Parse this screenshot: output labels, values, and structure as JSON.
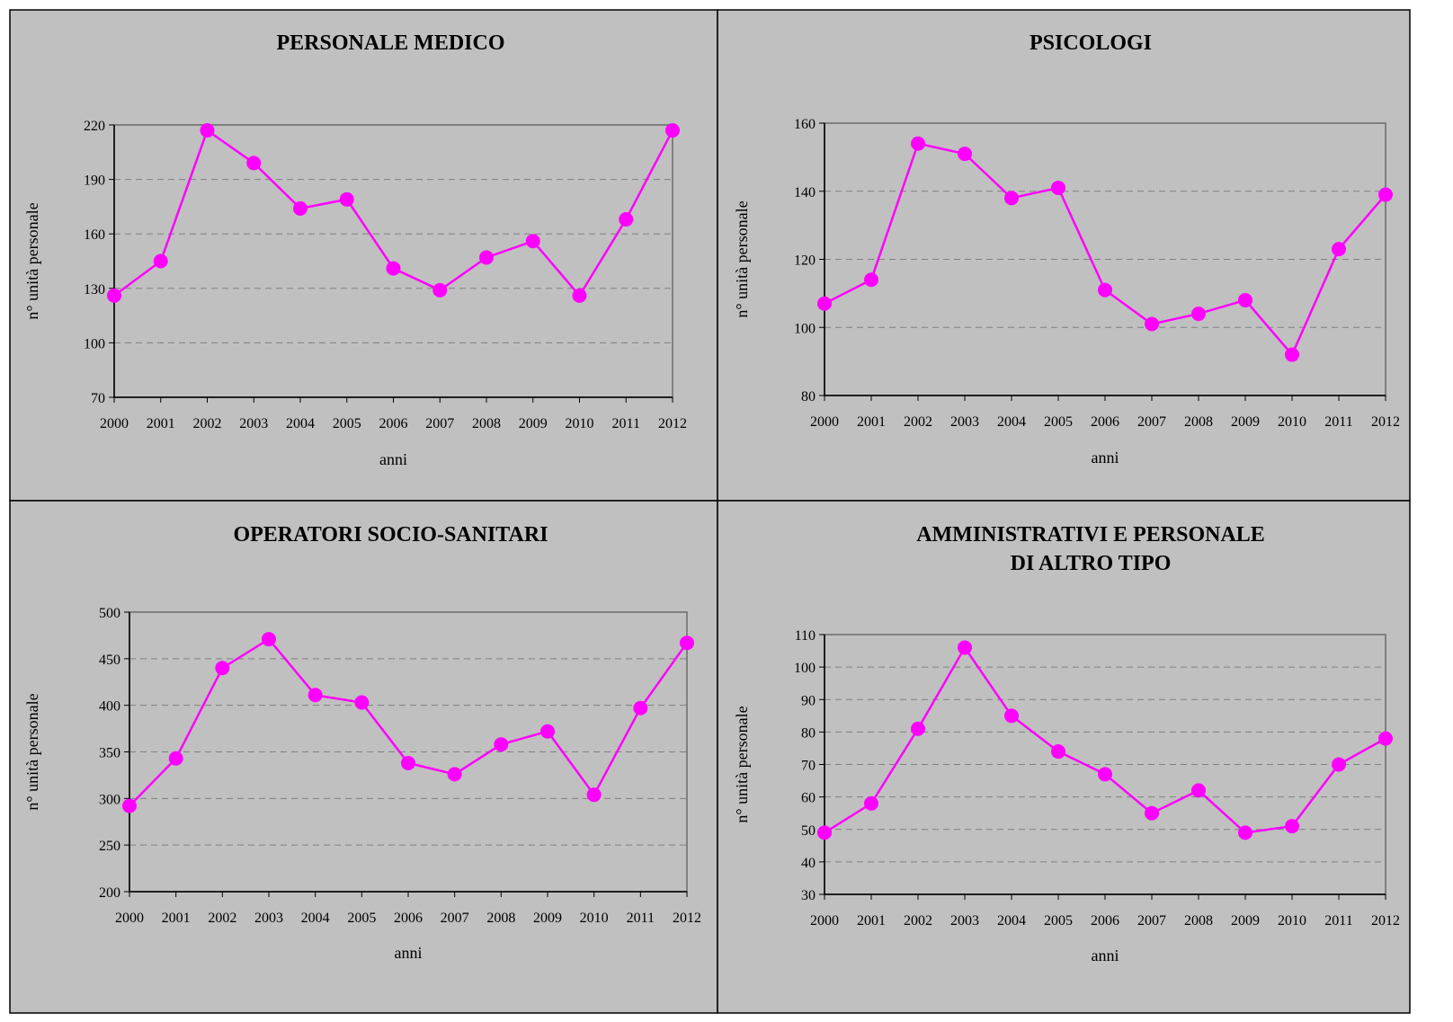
{
  "colors": {
    "panel_bg": "#c0c0c0",
    "plot_bg": "#c0c0c0",
    "series": "#ff00ff",
    "grid": "#808080",
    "frame": "#808080"
  },
  "chart_data": [
    {
      "type": "line",
      "title": [
        "PERSONALE MEDICO"
      ],
      "xlabel": "anni",
      "ylabel": "n° unità personale",
      "categories": [
        "2000",
        "2001",
        "2002",
        "2003",
        "2004",
        "2005",
        "2006",
        "2007",
        "2008",
        "2009",
        "2010",
        "2011",
        "2012"
      ],
      "yticks": [
        "70",
        "100",
        "130",
        "160",
        "190",
        "220"
      ],
      "ylim": [
        70,
        220
      ],
      "grid": true,
      "series": [
        {
          "values": [
            126,
            145,
            217,
            199,
            174,
            179,
            141,
            129,
            147,
            156,
            126,
            168,
            217
          ]
        }
      ]
    },
    {
      "type": "line",
      "title": [
        "PSICOLOGI"
      ],
      "xlabel": "anni",
      "ylabel": "n° unità personale",
      "categories": [
        "2000",
        "2001",
        "2002",
        "2003",
        "2004",
        "2005",
        "2006",
        "2007",
        "2008",
        "2009",
        "2010",
        "2011",
        "2012"
      ],
      "yticks": [
        "80",
        "100",
        "120",
        "140",
        "160"
      ],
      "ylim": [
        80,
        160
      ],
      "grid": true,
      "series": [
        {
          "values": [
            107,
            114,
            154,
            151,
            138,
            141,
            111,
            101,
            104,
            108,
            92,
            123,
            139
          ]
        }
      ]
    },
    {
      "type": "line",
      "title": [
        "OPERATORI SOCIO-SANITARI"
      ],
      "xlabel": "anni",
      "ylabel": "n° unità personale",
      "categories": [
        "2000",
        "2001",
        "2002",
        "2003",
        "2004",
        "2005",
        "2006",
        "2007",
        "2008",
        "2009",
        "2010",
        "2011",
        "2012"
      ],
      "yticks": [
        "200",
        "250",
        "300",
        "350",
        "400",
        "450",
        "500"
      ],
      "ylim": [
        200,
        500
      ],
      "grid": true,
      "series": [
        {
          "values": [
            292,
            343,
            440,
            471,
            411,
            403,
            338,
            326,
            358,
            372,
            304,
            397,
            467
          ]
        }
      ]
    },
    {
      "type": "line",
      "title": [
        "AMMINISTRATIVI E PERSONALE",
        "DI ALTRO TIPO"
      ],
      "xlabel": "anni",
      "ylabel": "n° unità personale",
      "categories": [
        "2000",
        "2001",
        "2002",
        "2003",
        "2004",
        "2005",
        "2006",
        "2007",
        "2008",
        "2009",
        "2010",
        "2011",
        "2012"
      ],
      "yticks": [
        "30",
        "40",
        "50",
        "60",
        "70",
        "80",
        "90",
        "100",
        "110"
      ],
      "ylim": [
        30,
        110
      ],
      "grid": true,
      "series": [
        {
          "values": [
            49,
            58,
            81,
            106,
            85,
            74,
            67,
            55,
            62,
            49,
            51,
            70,
            78
          ]
        }
      ]
    }
  ]
}
